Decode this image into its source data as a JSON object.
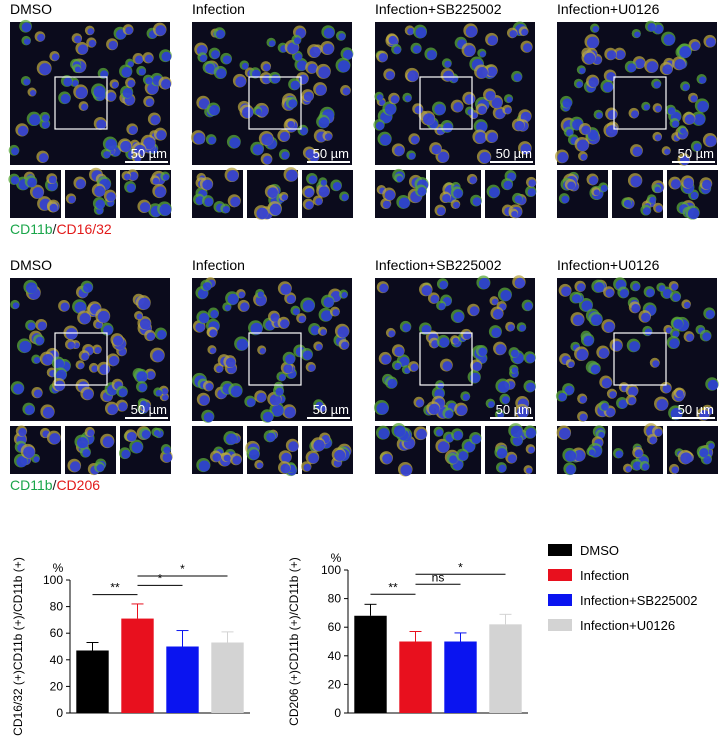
{
  "panels": {
    "row1": {
      "labels": [
        "DMSO",
        "Infection",
        "Infection+SB225002",
        "Infection+U0126"
      ],
      "scale": "50 µm",
      "stain": [
        "CD11b",
        "/",
        "CD16/32"
      ]
    },
    "row2": {
      "labels": [
        "DMSO",
        "Infection",
        "Infection+SB225002",
        "Infection+U0126"
      ],
      "scale": "50 µm",
      "stain": [
        "CD11b",
        "/",
        "CD206"
      ]
    }
  },
  "chart_data": [
    {
      "type": "bar",
      "unit": "%",
      "ylabel": "CD16/32 (+)CD11b (+)/CD11b (+)",
      "categories": [
        "DMSO",
        "Infection",
        "Infection+SB225002",
        "Infection+U0126"
      ],
      "colors": [
        "#000000",
        "#e8101e",
        "#0a14f0",
        "#d3d3d3"
      ],
      "values": [
        47,
        71,
        50,
        53
      ],
      "errors": [
        6,
        11,
        12,
        8
      ],
      "ylim": [
        0,
        100
      ],
      "yticks": [
        0,
        20,
        40,
        60,
        80,
        100
      ],
      "significance": [
        {
          "from": 0,
          "to": 1,
          "label": "**"
        },
        {
          "from": 1,
          "to": 2,
          "label": "*"
        },
        {
          "from": 1,
          "to": 3,
          "label": "*"
        }
      ]
    },
    {
      "type": "bar",
      "unit": "%",
      "ylabel": "CD206 (+)CD11b (+)/CD11b (+)",
      "colors": [
        "#000000",
        "#e8101e",
        "#0a14f0",
        "#d3d3d3"
      ],
      "values": [
        68,
        50,
        50,
        62
      ],
      "errors": [
        8,
        7,
        6,
        7
      ],
      "ylim": [
        0,
        100
      ],
      "yticks": [
        0,
        20,
        40,
        60,
        80,
        100
      ],
      "significance": [
        {
          "from": 0,
          "to": 1,
          "label": "**"
        },
        {
          "from": 1,
          "to": 2,
          "label": "ns"
        },
        {
          "from": 1,
          "to": 3,
          "label": "*"
        }
      ]
    }
  ]
}
